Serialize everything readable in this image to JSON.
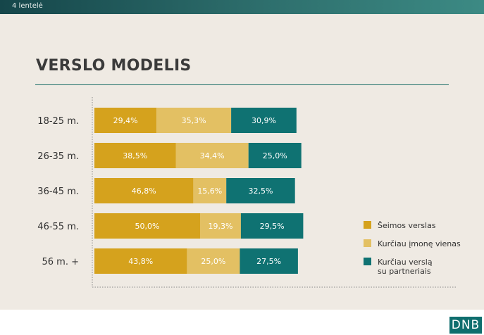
{
  "header": {
    "table_label": "4 lentelė"
  },
  "title": "VERSLO MODELIS",
  "logo": "DNB",
  "colors": {
    "seimos": "#d5a21d",
    "vienas": "#e3c063",
    "partneriais": "#0f7272",
    "panel": "#efeae3"
  },
  "chart_data": {
    "type": "bar",
    "orientation": "horizontal",
    "stacked": true,
    "categories": [
      "18-25 m.",
      "26-35 m.",
      "36-45 m.",
      "46-55 m.",
      "56 m. +"
    ],
    "series": [
      {
        "name": "Šeimos verslas",
        "values": [
          29.4,
          38.5,
          46.8,
          50.0,
          43.8
        ],
        "labels": [
          "29,4%",
          "38,5%",
          "46,8%",
          "50,0%",
          "43,8%"
        ],
        "color": "#d5a21d",
        "label_color": "#ffffff"
      },
      {
        "name": "Kurčiau įmonę vienas",
        "values": [
          35.3,
          34.4,
          15.6,
          19.3,
          25.0
        ],
        "labels": [
          "35,3%",
          "34,4%",
          "15,6%",
          "19,3%",
          "25,0%"
        ],
        "color": "#e3c063",
        "label_color": "#ffffff"
      },
      {
        "name": "Kurčiau verslą su partneriais",
        "legend_lines": [
          "Kurčiau verslą",
          "su partneriais"
        ],
        "values": [
          30.9,
          25.0,
          32.5,
          29.5,
          27.5
        ],
        "labels": [
          "30,9%",
          "25,0%",
          "32,5%",
          "29,5%",
          "27,5%"
        ],
        "color": "#0f7272",
        "label_color": "#ffffff"
      }
    ],
    "xlim": [
      0,
      100
    ],
    "grid": false,
    "legend_position": "right"
  }
}
